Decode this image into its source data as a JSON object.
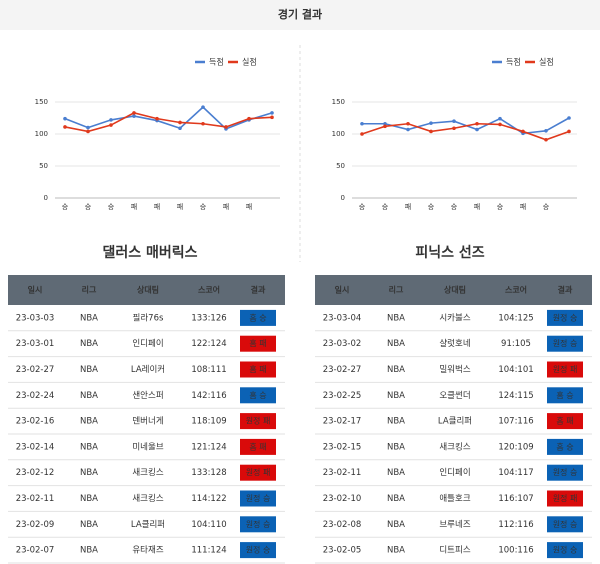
{
  "header": {
    "title": "경기 결과"
  },
  "teams": [
    "댈러스 매버릭스",
    "피닉스 선즈"
  ],
  "chart_data": [
    {
      "type": "line",
      "categories": [
        "승",
        "승",
        "승",
        "패",
        "패",
        "패",
        "승",
        "패",
        "패",
        null
      ],
      "series": [
        {
          "name": "득점",
          "color": "#4a7ed0",
          "values": [
            124,
            110,
            122,
            128,
            121,
            109,
            142,
            108,
            122,
            133
          ]
        },
        {
          "name": "실점",
          "color": "#e0391c",
          "values": [
            111,
            104,
            114,
            133,
            124,
            118,
            116,
            111,
            124,
            126
          ]
        }
      ],
      "ylim": [
        0,
        150
      ],
      "yticks": [
        0,
        50,
        100,
        150
      ],
      "grid": true,
      "legend": "top-right"
    },
    {
      "type": "line",
      "categories": [
        "승",
        "승",
        "패",
        "승",
        "승",
        "패",
        "승",
        "패",
        "승",
        null
      ],
      "series": [
        {
          "name": "득점",
          "color": "#4a7ed0",
          "values": [
            116,
            116,
            107,
            117,
            120,
            107,
            124,
            101,
            105,
            125
          ]
        },
        {
          "name": "실점",
          "color": "#e0391c",
          "values": [
            100,
            112,
            116,
            104,
            109,
            116,
            115,
            104,
            91,
            104
          ]
        }
      ],
      "ylim": [
        0,
        150
      ],
      "yticks": [
        0,
        50,
        100,
        150
      ],
      "grid": true,
      "legend": "top-right"
    }
  ],
  "result_colors": {
    "홈 승": "#0b62b5",
    "원정 승": "#0b62b5",
    "홈 패": "#d90a0a",
    "원정 패": "#d90a0a"
  },
  "tables": [
    {
      "columns": [
        "일시",
        "리그",
        "상대팀",
        "스코어",
        "결과"
      ],
      "rows": [
        [
          "23-03-03",
          "NBA",
          "필라76s",
          "133:126",
          "홈 승"
        ],
        [
          "23-03-01",
          "NBA",
          "인디페이",
          "122:124",
          "홈 패"
        ],
        [
          "23-02-27",
          "NBA",
          "LA레이커",
          "108:111",
          "홈 패"
        ],
        [
          "23-02-24",
          "NBA",
          "샌안스퍼",
          "142:116",
          "홈 승"
        ],
        [
          "23-02-16",
          "NBA",
          "덴버너게",
          "118:109",
          "원정 패"
        ],
        [
          "23-02-14",
          "NBA",
          "미네울브",
          "121:124",
          "홈 패"
        ],
        [
          "23-02-12",
          "NBA",
          "새크킹스",
          "133:128",
          "원정 패"
        ],
        [
          "23-02-11",
          "NBA",
          "새크킹스",
          "114:122",
          "원정 승"
        ],
        [
          "23-02-09",
          "NBA",
          "LA클리퍼",
          "104:110",
          "원정 승"
        ],
        [
          "23-02-07",
          "NBA",
          "유타재즈",
          "111:124",
          "원정 승"
        ]
      ]
    },
    {
      "columns": [
        "일시",
        "리그",
        "상대팀",
        "스코어",
        "결과"
      ],
      "rows": [
        [
          "23-03-04",
          "NBA",
          "시카불스",
          "104:125",
          "원정 승"
        ],
        [
          "23-03-02",
          "NBA",
          "샬럿호네",
          "91:105",
          "원정 승"
        ],
        [
          "23-02-27",
          "NBA",
          "밀워벅스",
          "104:101",
          "원정 패"
        ],
        [
          "23-02-25",
          "NBA",
          "오클썬더",
          "124:115",
          "홈 승"
        ],
        [
          "23-02-17",
          "NBA",
          "LA클리퍼",
          "107:116",
          "홈 패"
        ],
        [
          "23-02-15",
          "NBA",
          "새크킹스",
          "120:109",
          "홈 승"
        ],
        [
          "23-02-11",
          "NBA",
          "인디페이",
          "104:117",
          "원정 승"
        ],
        [
          "23-02-10",
          "NBA",
          "애틀호크",
          "116:107",
          "원정 패"
        ],
        [
          "23-02-08",
          "NBA",
          "브루네즈",
          "112:116",
          "원정 승"
        ],
        [
          "23-02-05",
          "NBA",
          "디트피스",
          "100:116",
          "원정 승"
        ]
      ]
    }
  ]
}
